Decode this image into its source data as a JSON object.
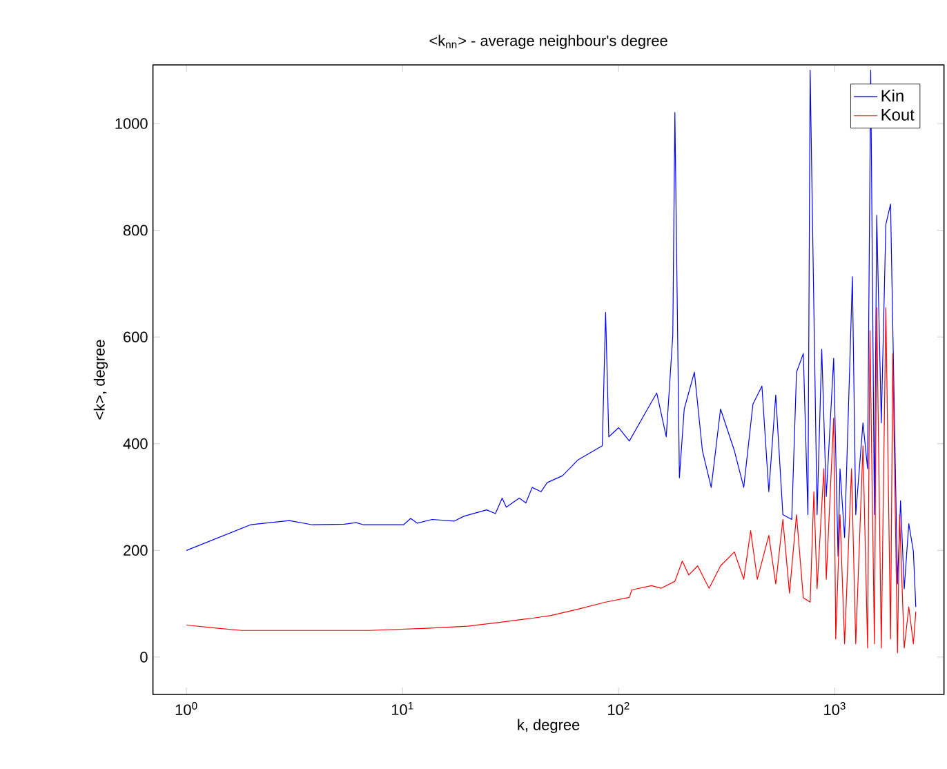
{
  "chart_data": {
    "type": "line",
    "title": "<k$_{nn}$> - average neighbour's degree",
    "xlabel": "k, degree",
    "ylabel": "<k>, degree",
    "log": "x",
    "grid": false,
    "legend": "top right",
    "marker": "none",
    "line_style": "solid",
    "xlim": [
      0.7,
      3200
    ],
    "ylim": [
      -70,
      1110
    ],
    "xticks": [
      {
        "value": 1,
        "label": "10$^{0}$"
      },
      {
        "value": 10,
        "label": "10$^{1}$"
      },
      {
        "value": 100,
        "label": "10$^{2}$"
      },
      {
        "value": 1000,
        "label": "10$^{3}$"
      }
    ],
    "yticks": [
      0,
      200,
      400,
      600,
      800,
      1000
    ],
    "series": [
      {
        "name": "Kin",
        "color": "#0000ff",
        "x": [
          1,
          1.98,
          2.99,
          3.83,
          5.38,
          6.1,
          6.6,
          10.1,
          10.9,
          11.7,
          13.7,
          17.4,
          19.2,
          24.5,
          26.9,
          28.9,
          30.2,
          34.7,
          37.2,
          39.8,
          43.7,
          46.7,
          55,
          65,
          84,
          87,
          90,
          100,
          112,
          136,
          150,
          166,
          178,
          182,
          191,
          201,
          224,
          244,
          268,
          296,
          343,
          379,
          418,
          460,
          495,
          533,
          575,
          632,
          665,
          715,
          751,
          769,
          828,
          870,
          913,
          988,
          1035,
          1057,
          1110,
          1206,
          1250,
          1350,
          1418,
          1466,
          1525,
          1563,
          1641,
          1723,
          1765,
          1811,
          1882,
          1950,
          2015,
          2095,
          2200,
          2310,
          2370
        ],
        "values": [
          200,
          248,
          256,
          248,
          249,
          252,
          248,
          248,
          260,
          251,
          258,
          255,
          264,
          276,
          269,
          298,
          281,
          298,
          289,
          318,
          310,
          327,
          340,
          370,
          396,
          646,
          413,
          430,
          405,
          465,
          495,
          413,
          603,
          1021,
          336,
          465,
          534,
          387,
          318,
          465,
          387,
          318,
          474,
          508,
          310,
          491,
          267,
          258,
          534,
          569,
          267,
          1100,
          267,
          577,
          301,
          560,
          189,
          353,
          224,
          713,
          267,
          439,
          353,
          1100,
          267,
          828,
          439,
          811,
          null,
          849,
          null,
          137,
          293,
          128,
          250,
          198,
          94
        ]
      },
      {
        "name": "Kout",
        "color": "#ff0000",
        "x": [
          1,
          1.4,
          1.8,
          7,
          13,
          20,
          28,
          40,
          48.6,
          65,
          87,
          112,
          115,
          142,
          157,
          182,
          197,
          211,
          232,
          262,
          296,
          343,
          379,
          408,
          438,
          495,
          533,
          575,
          617,
          665,
          715,
          769,
          800,
          828,
          890,
          913,
          988,
          1010,
          1057,
          1110,
          1195,
          1250,
          1350,
          1418,
          1454,
          1525,
          1563,
          1641,
          1723,
          1811,
          1855,
          1950,
          1995,
          2095,
          2200,
          2310,
          2370
        ],
        "values": [
          60,
          54,
          50,
          50,
          54,
          58,
          65,
          73,
          78,
          90,
          103,
          112,
          126,
          134,
          129,
          142,
          180,
          154,
          171,
          129,
          171,
          197,
          146,
          237,
          146,
          228,
          137,
          258,
          120,
          267,
          111,
          103,
          310,
          128,
          353,
          146,
          448,
          34,
          267,
          25,
          353,
          25,
          396,
          17,
          612,
          25,
          655,
          17,
          655,
          34,
          569,
          8,
          267,
          17,
          94,
          25,
          85
        ]
      }
    ]
  }
}
